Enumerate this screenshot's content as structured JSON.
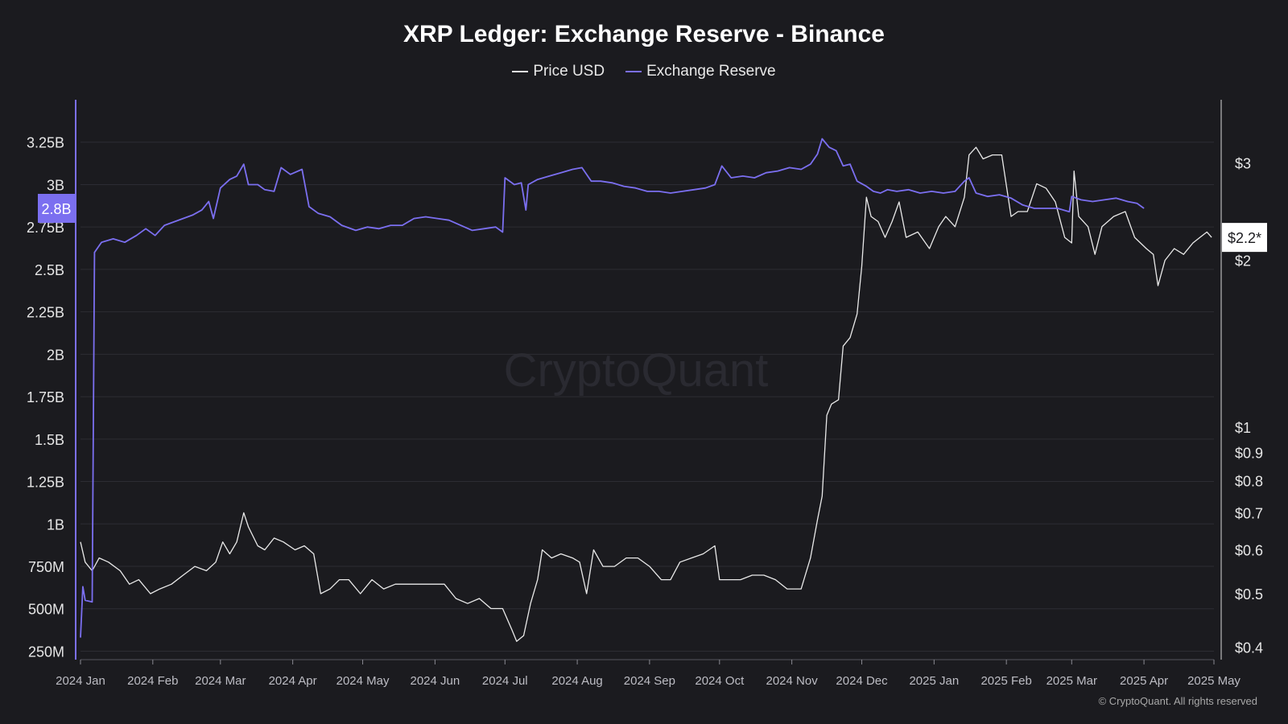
{
  "chart_data": {
    "type": "line",
    "title": "XRP Ledger: Exchange Reserve - Binance",
    "legend_placement": "top-center",
    "grid": true,
    "watermark": "CryptoQuant",
    "footer": "© CryptoQuant. All rights reserved",
    "colors": {
      "price": "#e9e9e9",
      "reserve": "#7b6ff0",
      "background": "#1b1b1f"
    },
    "x_ticks": [
      "2024 Jan",
      "2024 Feb",
      "2024 Mar",
      "2024 Apr",
      "2024 May",
      "2024 Jun",
      "2024 Jul",
      "2024 Aug",
      "2024 Sep",
      "2024 Oct",
      "2024 Nov",
      "2024 Dec",
      "2025 Jan",
      "2025 Feb",
      "2025 Mar",
      "2025 Apr",
      "2025 May"
    ],
    "x_range": [
      "2024-01-01",
      "2025-05-01"
    ],
    "y_left": {
      "label": "Exchange Reserve",
      "ticks": [
        "250M",
        "500M",
        "750M",
        "1B",
        "1.25B",
        "1.5B",
        "1.75B",
        "2B",
        "2.25B",
        "2.5B",
        "2.75B",
        "3B",
        "3.25B"
      ],
      "tick_values": [
        250000000,
        500000000,
        750000000,
        1000000000,
        1250000000,
        1500000000,
        1750000000,
        2000000000,
        2250000000,
        2500000000,
        2750000000,
        3000000000,
        3250000000
      ],
      "range": [
        200000000,
        3500000000
      ],
      "current_label": "2.8B"
    },
    "y_right": {
      "label": "Price USD",
      "scale": "log",
      "ticks": [
        "$0.4",
        "$0.5",
        "$0.6",
        "$0.7",
        "$0.8",
        "$0.9",
        "$1",
        "$2",
        "$3"
      ],
      "tick_values": [
        0.4,
        0.5,
        0.6,
        0.7,
        0.8,
        0.9,
        1,
        2,
        3
      ],
      "range": [
        0.38,
        3.9
      ],
      "current_label": "$2.2*"
    },
    "series": [
      {
        "name": "Price USD",
        "axis": "right",
        "points": [
          [
            "2024-01-01",
            0.62
          ],
          [
            "2024-01-03",
            0.57
          ],
          [
            "2024-01-06",
            0.55
          ],
          [
            "2024-01-09",
            0.58
          ],
          [
            "2024-01-13",
            0.57
          ],
          [
            "2024-01-18",
            0.55
          ],
          [
            "2024-01-22",
            0.52
          ],
          [
            "2024-01-26",
            0.53
          ],
          [
            "2024-01-31",
            0.5
          ],
          [
            "2024-02-04",
            0.51
          ],
          [
            "2024-02-09",
            0.52
          ],
          [
            "2024-02-14",
            0.54
          ],
          [
            "2024-02-19",
            0.56
          ],
          [
            "2024-02-24",
            0.55
          ],
          [
            "2024-02-28",
            0.57
          ],
          [
            "2024-03-02",
            0.62
          ],
          [
            "2024-03-05",
            0.59
          ],
          [
            "2024-03-08",
            0.62
          ],
          [
            "2024-03-11",
            0.7
          ],
          [
            "2024-03-13",
            0.66
          ],
          [
            "2024-03-17",
            0.61
          ],
          [
            "2024-03-20",
            0.6
          ],
          [
            "2024-03-24",
            0.63
          ],
          [
            "2024-03-28",
            0.62
          ],
          [
            "2024-04-02",
            0.6
          ],
          [
            "2024-04-06",
            0.61
          ],
          [
            "2024-04-10",
            0.59
          ],
          [
            "2024-04-13",
            0.5
          ],
          [
            "2024-04-17",
            0.51
          ],
          [
            "2024-04-21",
            0.53
          ],
          [
            "2024-04-25",
            0.53
          ],
          [
            "2024-04-30",
            0.5
          ],
          [
            "2024-05-05",
            0.53
          ],
          [
            "2024-05-10",
            0.51
          ],
          [
            "2024-05-15",
            0.52
          ],
          [
            "2024-05-20",
            0.52
          ],
          [
            "2024-05-25",
            0.52
          ],
          [
            "2024-05-31",
            0.52
          ],
          [
            "2024-06-05",
            0.52
          ],
          [
            "2024-06-10",
            0.49
          ],
          [
            "2024-06-15",
            0.48
          ],
          [
            "2024-06-20",
            0.49
          ],
          [
            "2024-06-25",
            0.47
          ],
          [
            "2024-06-30",
            0.47
          ],
          [
            "2024-07-04",
            0.43
          ],
          [
            "2024-07-06",
            0.41
          ],
          [
            "2024-07-09",
            0.42
          ],
          [
            "2024-07-12",
            0.48
          ],
          [
            "2024-07-15",
            0.53
          ],
          [
            "2024-07-17",
            0.6
          ],
          [
            "2024-07-21",
            0.58
          ],
          [
            "2024-07-25",
            0.59
          ],
          [
            "2024-07-30",
            0.58
          ],
          [
            "2024-08-02",
            0.57
          ],
          [
            "2024-08-05",
            0.5
          ],
          [
            "2024-08-08",
            0.6
          ],
          [
            "2024-08-12",
            0.56
          ],
          [
            "2024-08-17",
            0.56
          ],
          [
            "2024-08-22",
            0.58
          ],
          [
            "2024-08-27",
            0.58
          ],
          [
            "2024-09-01",
            0.56
          ],
          [
            "2024-09-06",
            0.53
          ],
          [
            "2024-09-10",
            0.53
          ],
          [
            "2024-09-14",
            0.57
          ],
          [
            "2024-09-19",
            0.58
          ],
          [
            "2024-09-24",
            0.59
          ],
          [
            "2024-09-29",
            0.61
          ],
          [
            "2024-10-01",
            0.53
          ],
          [
            "2024-10-05",
            0.53
          ],
          [
            "2024-10-10",
            0.53
          ],
          [
            "2024-10-15",
            0.54
          ],
          [
            "2024-10-20",
            0.54
          ],
          [
            "2024-10-25",
            0.53
          ],
          [
            "2024-10-30",
            0.51
          ],
          [
            "2024-11-05",
            0.51
          ],
          [
            "2024-11-09",
            0.58
          ],
          [
            "2024-11-12",
            0.68
          ],
          [
            "2024-11-14",
            0.75
          ],
          [
            "2024-11-16",
            1.05
          ],
          [
            "2024-11-18",
            1.1
          ],
          [
            "2024-11-21",
            1.12
          ],
          [
            "2024-11-23",
            1.4
          ],
          [
            "2024-11-26",
            1.45
          ],
          [
            "2024-11-29",
            1.6
          ],
          [
            "2024-12-01",
            1.95
          ],
          [
            "2024-12-03",
            2.6
          ],
          [
            "2024-12-05",
            2.4
          ],
          [
            "2024-12-08",
            2.35
          ],
          [
            "2024-12-11",
            2.2
          ],
          [
            "2024-12-14",
            2.35
          ],
          [
            "2024-12-17",
            2.55
          ],
          [
            "2024-12-20",
            2.2
          ],
          [
            "2024-12-25",
            2.25
          ],
          [
            "2024-12-30",
            2.1
          ],
          [
            "2025-01-03",
            2.3
          ],
          [
            "2025-01-06",
            2.4
          ],
          [
            "2025-01-10",
            2.3
          ],
          [
            "2025-01-14",
            2.6
          ],
          [
            "2025-01-16",
            3.1
          ],
          [
            "2025-01-19",
            3.2
          ],
          [
            "2025-01-22",
            3.05
          ],
          [
            "2025-01-26",
            3.1
          ],
          [
            "2025-01-30",
            3.1
          ],
          [
            "2025-02-03",
            2.4
          ],
          [
            "2025-02-06",
            2.45
          ],
          [
            "2025-02-10",
            2.45
          ],
          [
            "2025-02-14",
            2.75
          ],
          [
            "2025-02-18",
            2.7
          ],
          [
            "2025-02-22",
            2.55
          ],
          [
            "2025-02-26",
            2.2
          ],
          [
            "2025-03-01",
            2.15
          ],
          [
            "2025-03-02",
            2.9
          ],
          [
            "2025-03-04",
            2.4
          ],
          [
            "2025-03-08",
            2.3
          ],
          [
            "2025-03-11",
            2.05
          ],
          [
            "2025-03-14",
            2.3
          ],
          [
            "2025-03-19",
            2.4
          ],
          [
            "2025-03-24",
            2.45
          ],
          [
            "2025-03-28",
            2.2
          ],
          [
            "2025-04-02",
            2.1
          ],
          [
            "2025-04-05",
            2.05
          ],
          [
            "2025-04-07",
            1.8
          ],
          [
            "2025-04-10",
            2.0
          ],
          [
            "2025-04-14",
            2.1
          ],
          [
            "2025-04-18",
            2.05
          ],
          [
            "2025-04-22",
            2.15
          ],
          [
            "2025-04-25",
            2.2
          ],
          [
            "2025-04-28",
            2.25
          ],
          [
            "2025-04-30",
            2.2
          ]
        ]
      },
      {
        "name": "Exchange Reserve",
        "axis": "left",
        "points": [
          [
            "2024-01-01",
            330000000
          ],
          [
            "2024-01-02",
            630000000
          ],
          [
            "2024-01-03",
            550000000
          ],
          [
            "2024-01-06",
            540000000
          ],
          [
            "2024-01-07",
            2600000000
          ],
          [
            "2024-01-10",
            2660000000
          ],
          [
            "2024-01-15",
            2680000000
          ],
          [
            "2024-01-20",
            2660000000
          ],
          [
            "2024-01-25",
            2700000000
          ],
          [
            "2024-01-29",
            2740000000
          ],
          [
            "2024-02-02",
            2700000000
          ],
          [
            "2024-02-06",
            2760000000
          ],
          [
            "2024-02-10",
            2780000000
          ],
          [
            "2024-02-14",
            2800000000
          ],
          [
            "2024-02-18",
            2820000000
          ],
          [
            "2024-02-22",
            2850000000
          ],
          [
            "2024-02-25",
            2900000000
          ],
          [
            "2024-02-27",
            2800000000
          ],
          [
            "2024-03-01",
            2980000000
          ],
          [
            "2024-03-05",
            3030000000
          ],
          [
            "2024-03-08",
            3050000000
          ],
          [
            "2024-03-11",
            3120000000
          ],
          [
            "2024-03-13",
            3000000000
          ],
          [
            "2024-03-17",
            3000000000
          ],
          [
            "2024-03-20",
            2970000000
          ],
          [
            "2024-03-24",
            2960000000
          ],
          [
            "2024-03-27",
            3100000000
          ],
          [
            "2024-03-31",
            3060000000
          ],
          [
            "2024-04-05",
            3090000000
          ],
          [
            "2024-04-08",
            2870000000
          ],
          [
            "2024-04-12",
            2830000000
          ],
          [
            "2024-04-17",
            2810000000
          ],
          [
            "2024-04-22",
            2760000000
          ],
          [
            "2024-04-28",
            2730000000
          ],
          [
            "2024-05-03",
            2750000000
          ],
          [
            "2024-05-08",
            2740000000
          ],
          [
            "2024-05-13",
            2760000000
          ],
          [
            "2024-05-18",
            2760000000
          ],
          [
            "2024-05-23",
            2800000000
          ],
          [
            "2024-05-28",
            2810000000
          ],
          [
            "2024-06-02",
            2800000000
          ],
          [
            "2024-06-07",
            2790000000
          ],
          [
            "2024-06-12",
            2760000000
          ],
          [
            "2024-06-17",
            2730000000
          ],
          [
            "2024-06-22",
            2740000000
          ],
          [
            "2024-06-27",
            2750000000
          ],
          [
            "2024-06-30",
            2720000000
          ],
          [
            "2024-07-01",
            3040000000
          ],
          [
            "2024-07-05",
            3000000000
          ],
          [
            "2024-07-08",
            3010000000
          ],
          [
            "2024-07-10",
            2850000000
          ],
          [
            "2024-07-11",
            3000000000
          ],
          [
            "2024-07-15",
            3030000000
          ],
          [
            "2024-07-20",
            3050000000
          ],
          [
            "2024-07-25",
            3070000000
          ],
          [
            "2024-07-30",
            3090000000
          ],
          [
            "2024-08-03",
            3100000000
          ],
          [
            "2024-08-07",
            3020000000
          ],
          [
            "2024-08-11",
            3020000000
          ],
          [
            "2024-08-16",
            3010000000
          ],
          [
            "2024-08-21",
            2990000000
          ],
          [
            "2024-08-26",
            2980000000
          ],
          [
            "2024-08-31",
            2960000000
          ],
          [
            "2024-09-05",
            2960000000
          ],
          [
            "2024-09-10",
            2950000000
          ],
          [
            "2024-09-15",
            2960000000
          ],
          [
            "2024-09-20",
            2970000000
          ],
          [
            "2024-09-25",
            2980000000
          ],
          [
            "2024-09-29",
            3000000000
          ],
          [
            "2024-10-02",
            3110000000
          ],
          [
            "2024-10-06",
            3040000000
          ],
          [
            "2024-10-11",
            3050000000
          ],
          [
            "2024-10-16",
            3040000000
          ],
          [
            "2024-10-21",
            3070000000
          ],
          [
            "2024-10-26",
            3080000000
          ],
          [
            "2024-10-31",
            3100000000
          ],
          [
            "2024-11-05",
            3090000000
          ],
          [
            "2024-11-09",
            3120000000
          ],
          [
            "2024-11-12",
            3180000000
          ],
          [
            "2024-11-14",
            3270000000
          ],
          [
            "2024-11-17",
            3220000000
          ],
          [
            "2024-11-20",
            3200000000
          ],
          [
            "2024-11-23",
            3110000000
          ],
          [
            "2024-11-26",
            3120000000
          ],
          [
            "2024-11-29",
            3020000000
          ],
          [
            "2024-12-03",
            2990000000
          ],
          [
            "2024-12-06",
            2960000000
          ],
          [
            "2024-12-09",
            2950000000
          ],
          [
            "2024-12-12",
            2970000000
          ],
          [
            "2024-12-16",
            2960000000
          ],
          [
            "2024-12-21",
            2970000000
          ],
          [
            "2024-12-26",
            2950000000
          ],
          [
            "2024-12-31",
            2960000000
          ],
          [
            "2025-01-05",
            2950000000
          ],
          [
            "2025-01-10",
            2960000000
          ],
          [
            "2025-01-14",
            3020000000
          ],
          [
            "2025-01-16",
            3040000000
          ],
          [
            "2025-01-19",
            2950000000
          ],
          [
            "2025-01-24",
            2930000000
          ],
          [
            "2025-01-29",
            2940000000
          ],
          [
            "2025-02-03",
            2920000000
          ],
          [
            "2025-02-08",
            2880000000
          ],
          [
            "2025-02-13",
            2860000000
          ],
          [
            "2025-02-18",
            2860000000
          ],
          [
            "2025-02-23",
            2860000000
          ],
          [
            "2025-02-28",
            2840000000
          ],
          [
            "2025-03-01",
            2930000000
          ],
          [
            "2025-03-05",
            2910000000
          ],
          [
            "2025-03-10",
            2900000000
          ],
          [
            "2025-03-15",
            2910000000
          ],
          [
            "2025-03-20",
            2920000000
          ],
          [
            "2025-03-25",
            2900000000
          ],
          [
            "2025-03-29",
            2890000000
          ],
          [
            "2025-04-01",
            2860000000
          ]
        ]
      }
    ]
  }
}
